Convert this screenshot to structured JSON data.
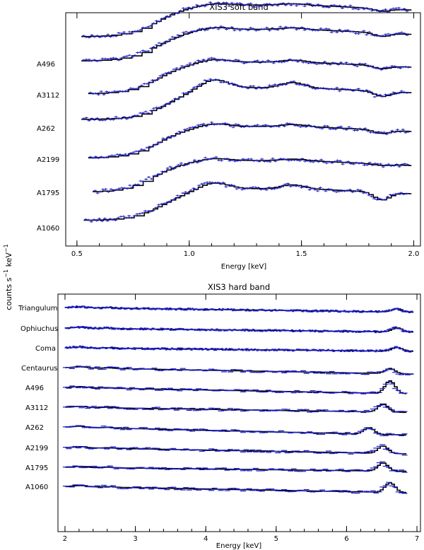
{
  "figure": {
    "ylabel_text": "counts s",
    "ylabel_sup1": "−1",
    "ylabel_unit": " keV",
    "ylabel_sup2": "−1"
  },
  "chart_data": [
    {
      "type": "line",
      "title": "XIS3 soft band",
      "xlabel": "Energy [keV]",
      "ylabel": "counts s^-1 keV^-1",
      "xlim": [
        0.45,
        2.03
      ],
      "xticks": [
        0.5,
        1.0,
        1.5,
        2.0
      ],
      "xtick_labels": [
        "0.5",
        "1.0",
        "1.5",
        "2.0"
      ],
      "curve_color": "#000000",
      "data_color": "#1e1ecc",
      "series": [
        {
          "name": "A1060",
          "x_start": 0.53,
          "hump": 0.27,
          "knee": 0.88,
          "peak_amp": 0.16,
          "dip_amp": 0.18
        },
        {
          "name": "A1795",
          "x_start": 0.57,
          "hump": 0.1,
          "knee": 0.84,
          "peak_amp": 0.06,
          "dip_amp": 0.03
        },
        {
          "name": "A2199",
          "x_start": 0.55,
          "hump": 0.12,
          "knee": 0.86,
          "peak_amp": 0.08,
          "dip_amp": 0.08
        },
        {
          "name": "A262",
          "x_start": 0.52,
          "hump": 0.3,
          "knee": 0.9,
          "peak_amp": 0.22,
          "dip_amp": 0.12
        },
        {
          "name": "A3112",
          "x_start": 0.55,
          "hump": 0.12,
          "knee": 0.86,
          "peak_amp": 0.08,
          "dip_amp": 0.07
        },
        {
          "name": "A496",
          "x_start": 0.52,
          "hump": 0.16,
          "knee": 0.86,
          "peak_amp": 0.06,
          "dip_amp": 0.08
        },
        {
          "name": "",
          "x_start": 0.52,
          "hump": 0.1,
          "knee": 0.86,
          "peak_amp": 0.05,
          "dip_amp": 0.06
        }
      ]
    },
    {
      "type": "line",
      "title": "XIS3 hard band",
      "xlabel": "Energy [keV]",
      "ylabel": "counts s^-1 keV^-1",
      "xlim": [
        1.9,
        7.05
      ],
      "xticks": [
        2,
        3,
        4,
        5,
        6,
        7
      ],
      "xtick_labels": [
        "2",
        "3",
        "4",
        "5",
        "6",
        "7"
      ],
      "curve_color": "#000000",
      "data_color": "#1e1ecc",
      "series": [
        {
          "name": "A1060",
          "x_start": 2.0,
          "x_end": 6.85,
          "line_kev": 6.6,
          "line_amp": 0.65,
          "decline": 0.55
        },
        {
          "name": "A1795",
          "x_start": 2.0,
          "x_end": 6.85,
          "line_kev": 6.5,
          "line_amp": 0.55,
          "decline": 0.35
        },
        {
          "name": "A2199",
          "x_start": 2.0,
          "x_end": 6.85,
          "line_kev": 6.5,
          "line_amp": 0.5,
          "decline": 0.55
        },
        {
          "name": "A262",
          "x_start": 2.0,
          "x_end": 6.85,
          "line_kev": 6.3,
          "line_amp": 0.45,
          "decline": 0.7
        },
        {
          "name": "A3112",
          "x_start": 2.0,
          "x_end": 6.85,
          "line_kev": 6.5,
          "line_amp": 0.55,
          "decline": 0.45
        },
        {
          "name": "A496",
          "x_start": 2.0,
          "x_end": 6.85,
          "line_kev": 6.6,
          "line_amp": 0.85,
          "decline": 0.55
        },
        {
          "name": "Centaurus",
          "x_start": 2.0,
          "x_end": 6.95,
          "line_kev": 6.6,
          "line_amp": 0.35,
          "decline": 0.55
        },
        {
          "name": "Coma",
          "x_start": 2.0,
          "x_end": 6.95,
          "line_kev": 6.7,
          "line_amp": 0.25,
          "decline": 0.3
        },
        {
          "name": "Ophiuchus",
          "x_start": 2.0,
          "x_end": 6.95,
          "line_kev": 6.7,
          "line_amp": 0.28,
          "decline": 0.35
        },
        {
          "name": "Triangulum",
          "x_start": 2.0,
          "x_end": 6.95,
          "line_kev": 6.7,
          "line_amp": 0.22,
          "decline": 0.4
        }
      ]
    }
  ]
}
